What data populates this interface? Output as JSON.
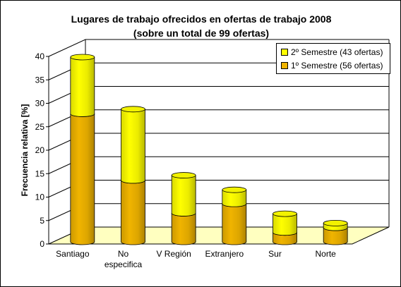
{
  "chart_data": {
    "type": "bar",
    "stacked": true,
    "style": "3d-cylinder",
    "title": "Lugares de trabajo ofrecidos en ofertas de trabajo 2008",
    "subtitle": "(sobre un total de 99 ofertas)",
    "xlabel": "",
    "ylabel": "Frecuencia relativa [%]",
    "ylim": [
      0,
      40
    ],
    "yticks": [
      0,
      5,
      10,
      15,
      20,
      25,
      30,
      35,
      40
    ],
    "grid": true,
    "legend_position": "top-right",
    "categories": [
      "Santiago",
      "No especifica",
      "V Región",
      "Extranjero",
      "Sur",
      "Norte"
    ],
    "category_lines": [
      [
        "Santiago"
      ],
      [
        "No",
        "especifica"
      ],
      [
        "V Región"
      ],
      [
        "Extranjero"
      ],
      [
        "Sur"
      ],
      [
        "Norte"
      ]
    ],
    "series": [
      {
        "name": "1º Semestre (56 ofertas)",
        "values": [
          27.3,
          13.1,
          6.1,
          8.1,
          2.0,
          3.0
        ],
        "color": "#F0B400"
      },
      {
        "name": "2º Semestre (43 ofertas)",
        "values": [
          12.1,
          15.2,
          8.1,
          3.0,
          4.0,
          1.0
        ],
        "color": "#FFFF00"
      }
    ],
    "floor_color": "#FFFFC0"
  }
}
